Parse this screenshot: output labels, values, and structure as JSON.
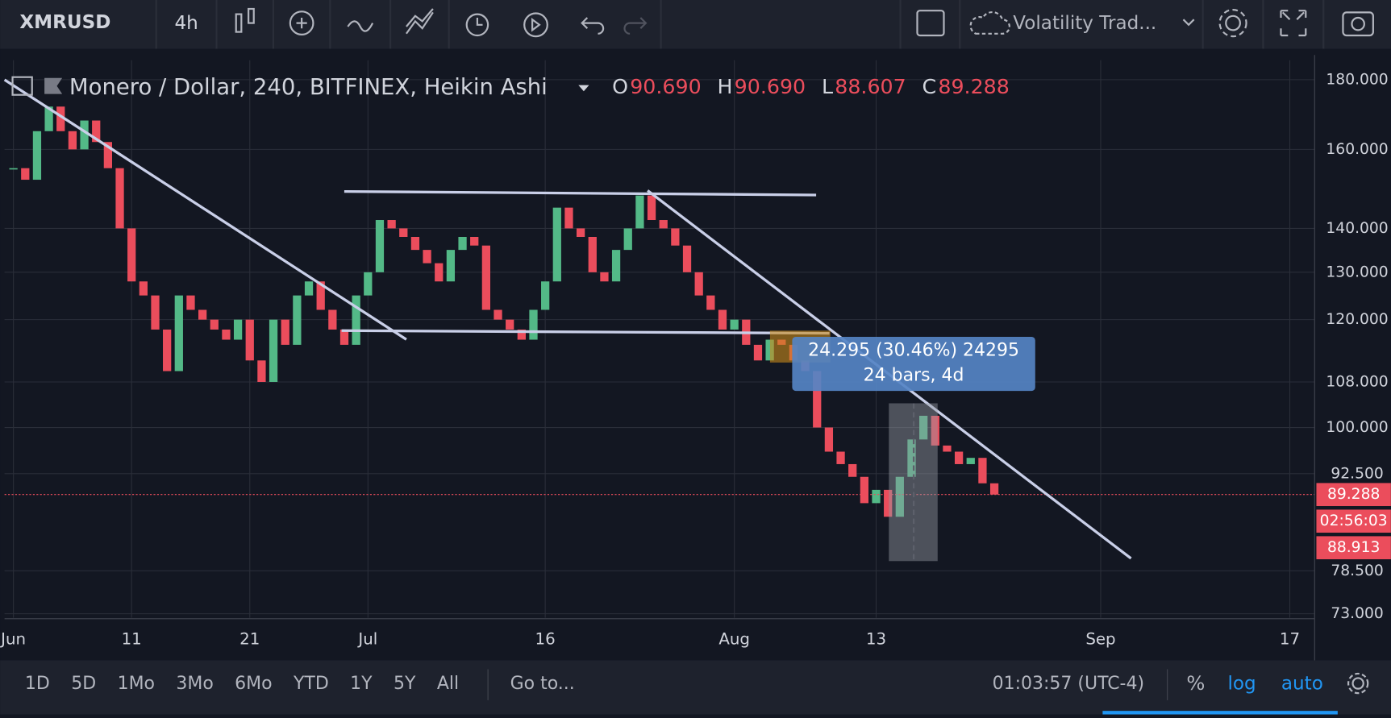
{
  "toolbar": {
    "symbol": "XMRUSD",
    "interval": "4h",
    "template": "Volatility Trad..."
  },
  "legend": {
    "title": "Monero / Dollar, 240, BITFINEX, Heikin Ashi",
    "ohlc": [
      {
        "key": "O",
        "value": "90.690"
      },
      {
        "key": "H",
        "value": "90.690"
      },
      {
        "key": "L",
        "value": "88.607"
      },
      {
        "key": "C",
        "value": "89.288"
      }
    ]
  },
  "measurement": {
    "line1": "24.295 (30.46%) 24295",
    "line2": "24 bars, 4d"
  },
  "chart_data": {
    "type": "candlestick",
    "log_scale": true,
    "grid": true,
    "x": [
      0,
      1,
      2,
      3,
      4,
      5,
      6,
      7,
      8,
      9,
      10,
      11,
      12,
      13,
      14,
      15,
      16,
      17,
      18,
      19,
      20,
      21,
      22,
      23,
      24,
      25,
      26,
      27,
      28,
      29,
      30,
      31,
      32,
      33,
      34,
      35,
      36,
      37,
      38,
      39,
      40,
      41,
      42,
      43,
      44,
      45,
      46,
      47,
      48,
      49,
      50,
      51,
      52,
      53,
      54,
      55,
      56,
      57,
      58,
      59,
      60,
      61,
      62,
      63,
      64,
      65,
      66,
      67,
      68,
      69,
      70,
      71,
      72,
      73,
      74,
      75,
      76,
      77,
      78,
      79,
      80,
      81,
      82,
      83
    ],
    "series": [
      {
        "name": "XMRUSD",
        "up_color": "#53b987",
        "down_color": "#eb4d5c",
        "values": [
          155,
          152,
          165,
          172,
          165,
          160,
          168,
          162,
          155,
          140,
          128,
          125,
          118,
          110,
          125,
          122,
          120,
          118,
          116,
          120,
          112,
          108,
          120,
          115,
          125,
          128,
          122,
          118,
          115,
          125,
          130,
          142,
          140,
          138,
          135,
          132,
          128,
          135,
          138,
          136,
          122,
          120,
          118,
          116,
          122,
          128,
          145,
          140,
          138,
          130,
          128,
          135,
          140,
          148,
          142,
          140,
          136,
          130,
          125,
          122,
          118,
          120,
          115,
          112,
          116,
          115,
          112,
          110,
          100,
          96,
          94,
          92,
          88,
          90,
          86,
          92,
          98,
          102,
          97,
          96,
          94,
          95,
          91,
          89.288
        ]
      }
    ],
    "xlim": [
      -0.75,
      110.1
    ],
    "xticks": [
      {
        "value": 0,
        "label": "Jun"
      },
      {
        "value": 10,
        "label": "11"
      },
      {
        "value": 20,
        "label": "21"
      },
      {
        "value": 30,
        "label": "Jul"
      },
      {
        "value": 45,
        "label": "16"
      },
      {
        "value": 61,
        "label": "Aug"
      },
      {
        "value": 73,
        "label": "13"
      },
      {
        "value": 92,
        "label": "Sep"
      },
      {
        "value": 108,
        "label": "17"
      }
    ],
    "ylim": [
      72.5,
      186
    ],
    "yticks": [
      {
        "value": 180,
        "label": "180.000"
      },
      {
        "value": 160,
        "label": "160.000"
      },
      {
        "value": 140,
        "label": "140.000"
      },
      {
        "value": 130,
        "label": "130.000"
      },
      {
        "value": 120,
        "label": "120.000"
      },
      {
        "value": 108,
        "label": "108.000"
      },
      {
        "value": 100,
        "label": "100.000"
      },
      {
        "value": 92.5,
        "label": "92.500"
      },
      {
        "value": 78.5,
        "label": "78.500"
      },
      {
        "value": 73,
        "label": "73.000"
      }
    ],
    "last_price": {
      "value": 89.288,
      "label": "89.288"
    },
    "extra_labels": [
      "02:56:03",
      "88.913"
    ]
  },
  "bottom_bar": {
    "ranges": [
      "1D",
      "5D",
      "1Mo",
      "3Mo",
      "6Mo",
      "YTD",
      "1Y",
      "5Y",
      "All"
    ],
    "goto": "Go to...",
    "clock": "01:03:57 (UTC-4)",
    "percent": "%",
    "log": "log",
    "auto": "auto"
  }
}
